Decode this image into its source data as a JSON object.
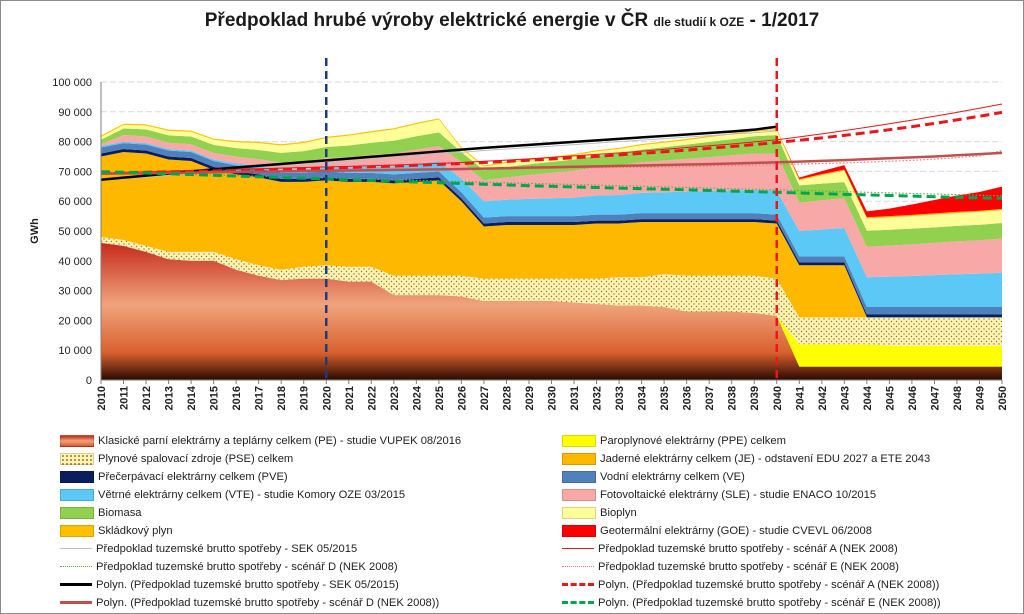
{
  "title_main": "Předpoklad hrubé výroby elektrické energie v ČR",
  "title_sub": "dle studií k OZE",
  "title_date": "-  1/2017",
  "chart_data": {
    "type": "area",
    "ylabel": "GWh",
    "ylim": [
      0,
      100000
    ],
    "yticks": [
      "0",
      "10 000",
      "20 000",
      "30 000",
      "40 000",
      "50 000",
      "60 000",
      "70 000",
      "80 000",
      "90 000",
      "100 000"
    ],
    "x": [
      2010,
      2011,
      2012,
      2013,
      2014,
      2015,
      2016,
      2017,
      2018,
      2019,
      2020,
      2021,
      2022,
      2023,
      2024,
      2025,
      2026,
      2027,
      2028,
      2029,
      2030,
      2031,
      2032,
      2033,
      2034,
      2035,
      2036,
      2037,
      2038,
      2039,
      2040,
      2041,
      2042,
      2043,
      2044,
      2045,
      2046,
      2047,
      2048,
      2049,
      2050
    ],
    "grid": true,
    "vertical_markers": [
      {
        "x": 2020,
        "style": "dashed",
        "color": "#1f3c7a"
      },
      {
        "x": 2040,
        "style": "dashed",
        "color": "#e8171c"
      }
    ],
    "series": [
      {
        "name": "Klasické parní elektrárny a teplárny celkem (PE) - studie VUPEK 08/2016",
        "color": "#d8602e",
        "values": [
          46000,
          45000,
          43000,
          40500,
          40000,
          40000,
          37000,
          35000,
          33500,
          34000,
          34000,
          33000,
          33000,
          28500,
          28500,
          28500,
          28000,
          26500,
          26500,
          26500,
          26500,
          26000,
          25500,
          25000,
          25000,
          24500,
          23000,
          23000,
          23000,
          22500,
          21500,
          4500,
          4500,
          4500,
          4500,
          4500,
          4500,
          4500,
          4500,
          4500,
          4500
        ]
      },
      {
        "name": "Paroplynové elektrárny (PPE) celkem",
        "color": "#ffff00",
        "values": [
          0,
          0,
          0,
          0,
          0,
          0,
          0,
          0,
          0,
          0,
          0,
          0,
          0,
          0,
          0,
          0,
          0,
          0,
          0,
          0,
          0,
          0,
          0,
          0,
          0,
          0,
          0,
          0,
          0,
          0,
          0,
          7500,
          7500,
          7500,
          7500,
          7000,
          7000,
          7000,
          7000,
          7000,
          7000
        ]
      },
      {
        "name": "Plynové spalovací zdroje (PSE) celkem",
        "color": "#fff2b3",
        "values": [
          2000,
          2000,
          2000,
          2500,
          3000,
          3000,
          3500,
          3500,
          3500,
          4000,
          4500,
          5000,
          5000,
          6500,
          6500,
          6500,
          7000,
          7500,
          7500,
          7500,
          7500,
          8000,
          8500,
          9500,
          9500,
          11000,
          12000,
          12000,
          12000,
          12500,
          12500,
          9000,
          9000,
          9000,
          9000,
          9500,
          9500,
          9500,
          9500,
          9500,
          9500
        ]
      },
      {
        "name": "Jaderné elektrárny celkem (JE) - odstavení EDU 2027 a ETE 2043",
        "color": "#ffb800",
        "values": [
          27000,
          29500,
          31000,
          31000,
          30500,
          27500,
          28500,
          29500,
          29500,
          28500,
          28500,
          28500,
          28500,
          31000,
          31500,
          32000,
          25000,
          17500,
          18000,
          18000,
          18000,
          18000,
          18500,
          18000,
          18500,
          17500,
          18000,
          18000,
          18000,
          18000,
          18500,
          17500,
          17500,
          17500,
          0,
          0,
          0,
          0,
          0,
          0,
          0
        ]
      },
      {
        "name": "Přečerpávací elektrárny celkem (PVE)",
        "color": "#0a1e5e",
        "values": [
          1000,
          1000,
          1000,
          1000,
          1000,
          1000,
          1000,
          1000,
          1000,
          1000,
          1000,
          1000,
          1000,
          1000,
          1000,
          1000,
          1000,
          1000,
          1000,
          1000,
          1000,
          1000,
          1000,
          1000,
          1000,
          1000,
          1000,
          1000,
          1000,
          1000,
          1000,
          1000,
          1000,
          1000,
          1000,
          1000,
          1000,
          1000,
          1000,
          1000,
          1000
        ]
      },
      {
        "name": "Vodní elektrárny celkem (VE)",
        "color": "#4f81bd",
        "values": [
          2000,
          2000,
          2000,
          2000,
          2000,
          2000,
          2000,
          2000,
          2000,
          2000,
          2000,
          2000,
          2000,
          2000,
          2000,
          2000,
          2000,
          2000,
          2000,
          2000,
          2000,
          2000,
          2000,
          2000,
          2000,
          2000,
          2000,
          2000,
          2000,
          2000,
          2000,
          2000,
          2000,
          2000,
          2500,
          2500,
          2500,
          2500,
          2500,
          2500,
          2500
        ]
      },
      {
        "name": "Větrné elektrárny celkem (VTE) - studie Komory OZE 03/2015",
        "color": "#5bc8f5",
        "values": [
          500,
          500,
          500,
          500,
          500,
          500,
          700,
          800,
          1000,
          1200,
          1500,
          1800,
          2000,
          2500,
          3000,
          3500,
          4500,
          5500,
          5500,
          5800,
          6000,
          6200,
          6400,
          6600,
          6800,
          7000,
          7200,
          7400,
          7600,
          7800,
          8000,
          8500,
          9000,
          9500,
          10000,
          10200,
          10400,
          10700,
          11000,
          11200,
          11500
        ]
      },
      {
        "name": "Fotovoltaické elektrárny (SLE) - studie ENACO 10/2015",
        "color": "#f9a8a8",
        "values": [
          600,
          2200,
          2200,
          2100,
          2100,
          2200,
          2200,
          2300,
          2400,
          2600,
          3000,
          3500,
          4000,
          4500,
          4800,
          5000,
          5600,
          7000,
          7500,
          8000,
          8500,
          9000,
          9500,
          10000,
          10300,
          10600,
          11000,
          11400,
          11800,
          12200,
          12500,
          9500,
          9800,
          10000,
          10200,
          10400,
          10600,
          10800,
          11000,
          11200,
          11500
        ]
      },
      {
        "name": "Biomasa",
        "color": "#92d050",
        "values": [
          1500,
          2200,
          2400,
          2500,
          2600,
          2700,
          2900,
          3100,
          3300,
          3500,
          3700,
          3900,
          4100,
          4300,
          4500,
          4600,
          3400,
          3400,
          3500,
          3600,
          3700,
          3800,
          3900,
          4000,
          4200,
          4500,
          4800,
          5100,
          5400,
          5800,
          6200,
          5800,
          5600,
          5400,
          5400,
          5300,
          5300,
          5200,
          5200,
          5200,
          5200
        ]
      },
      {
        "name": "Bioplyn",
        "color": "#ffff99",
        "values": [
          1000,
          1200,
          1300,
          1500,
          1600,
          1700,
          2000,
          2300,
          2500,
          2700,
          3000,
          3300,
          3500,
          3800,
          4100,
          4300,
          1200,
          1200,
          1300,
          1300,
          1300,
          1400,
          1400,
          1400,
          1500,
          1500,
          1500,
          1600,
          1600,
          1600,
          1600,
          1700,
          2800,
          3800,
          4100,
          4200,
          4200,
          4300,
          4300,
          4300,
          4300
        ]
      },
      {
        "name": "Skládkový plyn",
        "color": "#ffc000",
        "values": [
          400,
          400,
          400,
          400,
          400,
          400,
          400,
          400,
          400,
          400,
          400,
          400,
          400,
          400,
          400,
          400,
          400,
          400,
          400,
          400,
          400,
          400,
          400,
          400,
          400,
          400,
          400,
          400,
          400,
          400,
          400,
          400,
          400,
          400,
          400,
          400,
          400,
          400,
          400,
          400,
          400
        ]
      },
      {
        "name": "Geotermální elektrárny (GOE) - studie CVEVL 06/2008",
        "color": "#ff0000",
        "values": [
          0,
          0,
          0,
          0,
          0,
          0,
          0,
          0,
          0,
          0,
          0,
          0,
          0,
          0,
          0,
          0,
          0,
          0,
          0,
          0,
          0,
          0,
          0,
          0,
          0,
          0,
          0,
          0,
          0,
          0,
          0,
          500,
          1000,
          1500,
          2000,
          2500,
          3500,
          4500,
          5500,
          6300,
          7500
        ]
      }
    ],
    "lines": [
      {
        "name": "Předpoklad tuzemské brutto spotřeby - SEK 05/2015",
        "color": "#bfbfbf",
        "style": "thin",
        "values": [
          67000,
          67500,
          68000,
          68600,
          69200,
          69800,
          70400,
          71000,
          71600,
          72200,
          72800,
          73400,
          74000,
          74600,
          75200,
          75800,
          76400,
          77000,
          77500,
          78000,
          78500,
          79000,
          79500,
          80000,
          80500,
          81000,
          81500,
          82000,
          82500,
          83000,
          83500
        ]
      },
      {
        "name": "Předpoklad tuzemské brutto spotřeby - scénář A (NEK 2008)",
        "color": "#e8171c",
        "style": "thin",
        "values": [
          69500,
          69700,
          69900,
          70100,
          70300,
          70500,
          70700,
          70900,
          71100,
          71300,
          71500,
          71700,
          71900,
          72100,
          72400,
          72700,
          73000,
          73400,
          73800,
          74200,
          74700,
          75200,
          75700,
          76200,
          76800,
          77400,
          78000,
          78600,
          79200,
          79900,
          80600,
          81600,
          82600,
          83700,
          84800,
          86000,
          87200,
          88500,
          89800,
          91200,
          92600
        ]
      },
      {
        "name": "Předpoklad tuzemské brutto spotřeby - scénář D (NEK 2008)",
        "color": "#6aa84f",
        "style": "dotted",
        "values": [
          69800,
          69600,
          69400,
          69200,
          69000,
          68800,
          68600,
          68400,
          68200,
          68000,
          67800,
          67600,
          67400,
          67200,
          67000,
          66800,
          66600,
          66400,
          66200,
          66000,
          65800,
          65600,
          65400,
          65200,
          65000,
          64800,
          64600,
          64400,
          64200,
          64000,
          63800,
          63600,
          63400,
          63200,
          63000,
          62800,
          62600,
          62400,
          62200,
          62000,
          61800
        ]
      },
      {
        "name": "Předpoklad tuzemské brutto spotřeby - scénář E (NEK 2008)",
        "color": "#e87a7a",
        "style": "dotted",
        "values": [
          69600,
          69650,
          69700,
          69750,
          69800,
          69850,
          69900,
          69950,
          70000,
          70050,
          70100,
          70150,
          70200,
          70300,
          70400,
          70500,
          70600,
          70700,
          70800,
          70900,
          71000,
          71100,
          71200,
          71300,
          71400,
          71500,
          71650,
          71800,
          71950,
          72100,
          72250,
          72450,
          72650,
          72850,
          73100,
          73400,
          73700,
          74100,
          74600,
          75200,
          77000
        ]
      },
      {
        "name": "Polyn. (Předpoklad tuzemské brutto spotřeby - SEK 05/2015)",
        "color": "#000000",
        "style": "solid-thick",
        "values": [
          67200,
          67900,
          68600,
          69300,
          70000,
          70700,
          71300,
          71900,
          72500,
          73100,
          73700,
          74300,
          74900,
          75500,
          76100,
          76700,
          77300,
          77900,
          78400,
          78900,
          79400,
          79900,
          80400,
          80900,
          81400,
          81900,
          82400,
          82900,
          83400,
          84000,
          85000
        ]
      },
      {
        "name": "Polyn. (Předpoklad tuzemské brutto spotřeby - scénář A (NEK 2008))",
        "color": "#e8171c",
        "style": "dashed-thick",
        "values": [
          69500,
          69600,
          69700,
          69850,
          70000,
          70150,
          70300,
          70500,
          70700,
          70900,
          71100,
          71300,
          71550,
          71800,
          72050,
          72350,
          72650,
          73000,
          73350,
          73750,
          74150,
          74600,
          75050,
          75550,
          76050,
          76600,
          77150,
          77750,
          78350,
          79000,
          79700,
          80450,
          81250,
          82100,
          83000,
          84000,
          85000,
          86100,
          87300,
          88500,
          89800
        ]
      },
      {
        "name": "Polyn. (Předpoklad tuzemské brutto spotřeby - scénář D (NEK 2008))",
        "color": "#c0504d",
        "style": "solid-thick",
        "values": [
          69200,
          69300,
          69400,
          69500,
          69600,
          69700,
          69800,
          69900,
          70000,
          70100,
          70200,
          70300,
          70400,
          70500,
          70600,
          70700,
          70800,
          70950,
          71100,
          71250,
          71400,
          71550,
          71700,
          71850,
          72000,
          72150,
          72300,
          72450,
          72650,
          72850,
          73050,
          73300,
          73550,
          73800,
          74100,
          74400,
          74700,
          75000,
          75400,
          75800,
          76200
        ]
      },
      {
        "name": "Polyn. (Předpoklad tuzemské brutto spotřeby - scénář E (NEK 2008))",
        "color": "#00a550",
        "style": "dashed-thick",
        "values": [
          69900,
          69700,
          69450,
          69200,
          68950,
          68700,
          68450,
          68200,
          67950,
          67700,
          67450,
          67200,
          66950,
          66700,
          66450,
          66200,
          65950,
          65700,
          65450,
          65200,
          65000,
          64800,
          64600,
          64400,
          64200,
          64000,
          63800,
          63600,
          63400,
          63200,
          63000,
          62750,
          62500,
          62300,
          62100,
          61900,
          61700,
          61500,
          61300,
          61100,
          61000
        ]
      }
    ]
  }
}
